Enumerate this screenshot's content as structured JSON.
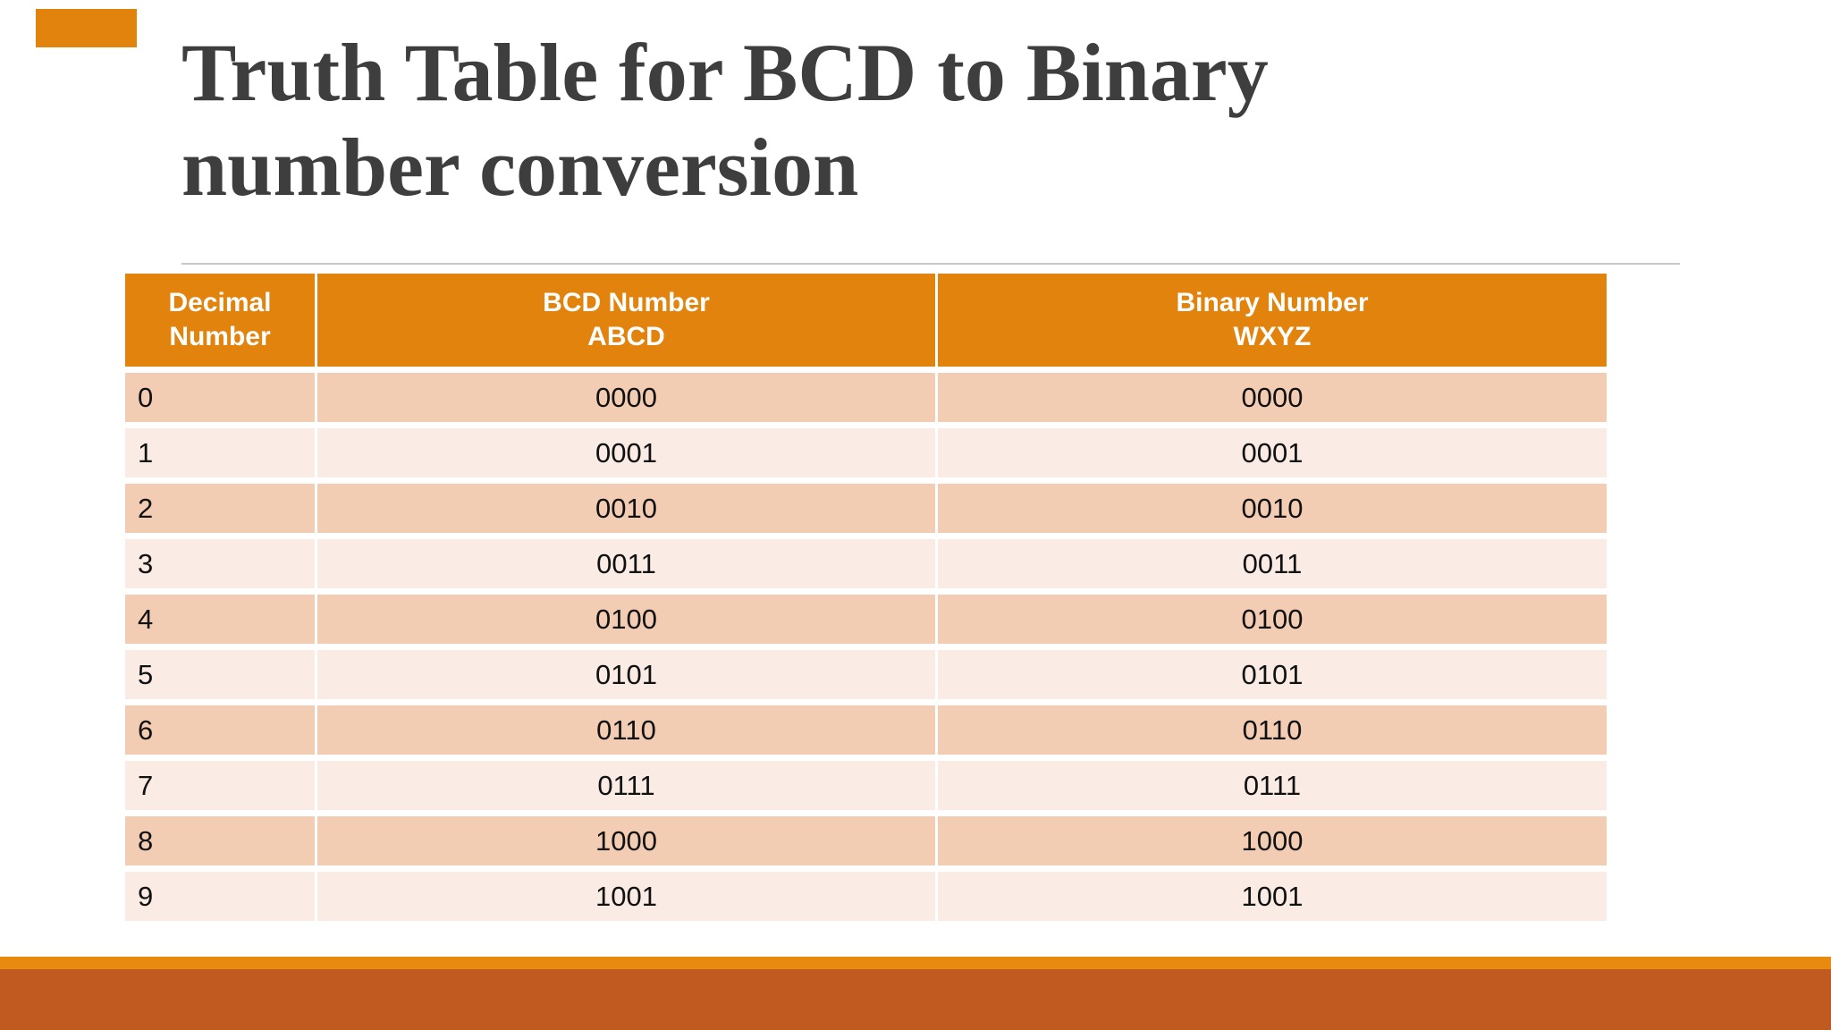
{
  "slide": {
    "title_line1": "Truth Table for BCD to Binary",
    "title_line2": "number conversion"
  },
  "table": {
    "columns": [
      {
        "label_line1": "Decimal",
        "label_line2": "Number"
      },
      {
        "label_line1": "BCD Number",
        "label_line2": "ABCD"
      },
      {
        "label_line1": "Binary Number",
        "label_line2": "WXYZ"
      }
    ],
    "rows": [
      {
        "decimal": "0",
        "bcd": "0000",
        "binary": "0000"
      },
      {
        "decimal": "1",
        "bcd": "0001",
        "binary": "0001"
      },
      {
        "decimal": "2",
        "bcd": "0010",
        "binary": "0010"
      },
      {
        "decimal": "3",
        "bcd": "0011",
        "binary": "0011"
      },
      {
        "decimal": "4",
        "bcd": "0100",
        "binary": "0100"
      },
      {
        "decimal": "5",
        "bcd": "0101",
        "binary": "0101"
      },
      {
        "decimal": "6",
        "bcd": "0110",
        "binary": "0110"
      },
      {
        "decimal": "7",
        "bcd": "0111",
        "binary": "0111"
      },
      {
        "decimal": "8",
        "bcd": "1000",
        "binary": "1000"
      },
      {
        "decimal": "9",
        "bcd": "1001",
        "binary": "1001"
      }
    ]
  },
  "colors": {
    "header_orange": "#E2830E",
    "row_dark": "#F3CCB4",
    "row_light": "#FAEBE4",
    "strip_amber": "#E88A10",
    "band_rust": "#C05A21",
    "title_color": "#3E3E3E",
    "rule_color": "#C8C8C8"
  }
}
